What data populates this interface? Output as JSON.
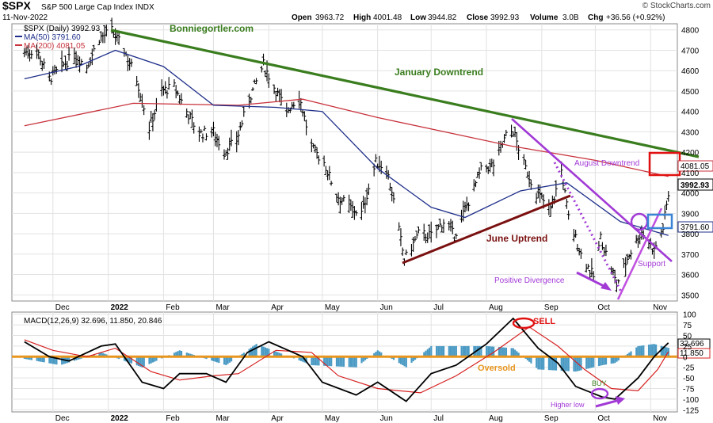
{
  "header": {
    "symbol": "$SPX",
    "name": "S&P 500 Large Cap Index INDX",
    "date": "11-Nov-2022",
    "open_label": "Open",
    "open": "3963.72",
    "high_label": "High",
    "high": "4001.48",
    "low_label": "Low",
    "low": "3944.82",
    "close_label": "Close",
    "close": "3992.93",
    "volume_label": "Volume",
    "volume": "3.0B",
    "chg_label": "Chg",
    "chg": "+36.56 (+0.92%)",
    "watermark": "© StockCharts.com"
  },
  "legend": {
    "price": "$SPX (Daily) 3992.93",
    "ma50": "MA(50) 3791.60",
    "ma200": "MA(200) 4081.05",
    "macd": "MACD(12,26,9) 32.696, 11.850, 20.846"
  },
  "colors": {
    "ma50": "#1f2f8a",
    "ma200": "#c8323c",
    "green_trend": "#3a7d1e",
    "june_trend": "#7a1010",
    "purple": "#a23ad6",
    "macd_fast": "#000000",
    "macd_signal": "#d62020",
    "hist": "#4a9ac4",
    "oversold": "#e8961e",
    "red_box": "#e01010",
    "blue_box": "#3a84d6"
  },
  "annotations": {
    "site": "Bonniegortler.com",
    "january": "January Downtrend",
    "august": "August Downtrend",
    "june": "June Uptrend",
    "support": "Support",
    "divergence": "Positive Divergence",
    "sell": "SELL",
    "buy": "BUY",
    "oversold": "Oversold",
    "higher_low": "Higher low"
  },
  "price_labels": {
    "ma200": "4081.05",
    "close": "3992.93",
    "ma50": "3791.60"
  },
  "macd_labels": {
    "macd": "32.696",
    "signal": "11.850"
  },
  "chart_data": [
    {
      "type": "ohlc",
      "title": "$SPX (Daily)",
      "yticks": [
        3500,
        3600,
        3700,
        3800,
        3900,
        4000,
        4100,
        4200,
        4300,
        4400,
        4500,
        4600,
        4700,
        4800
      ],
      "ylim": [
        3470,
        4830
      ],
      "months": [
        "Dec",
        "2022",
        "Feb",
        "Mar",
        "Apr",
        "May",
        "Jun",
        "Jul",
        "Aug",
        "Sep",
        "Oct",
        "Nov"
      ],
      "close_points": [
        [
          "2021-11-15",
          4690
        ],
        [
          "2021-11-22",
          4700
        ],
        [
          "2021-11-29",
          4560
        ],
        [
          "2021-12-06",
          4620
        ],
        [
          "2021-12-13",
          4680
        ],
        [
          "2021-12-20",
          4620
        ],
        [
          "2021-12-27",
          4760
        ],
        [
          "2022-01-03",
          4795
        ],
        [
          "2022-01-10",
          4700
        ],
        [
          "2022-01-17",
          4560
        ],
        [
          "2022-01-24",
          4320
        ],
        [
          "2022-01-31",
          4500
        ],
        [
          "2022-02-07",
          4520
        ],
        [
          "2022-02-14",
          4400
        ],
        [
          "2022-02-21",
          4290
        ],
        [
          "2022-03-01",
          4300
        ],
        [
          "2022-03-07",
          4200
        ],
        [
          "2022-03-14",
          4260
        ],
        [
          "2022-03-21",
          4460
        ],
        [
          "2022-03-29",
          4630
        ],
        [
          "2022-04-04",
          4520
        ],
        [
          "2022-04-11",
          4400
        ],
        [
          "2022-04-18",
          4480
        ],
        [
          "2022-04-25",
          4220
        ],
        [
          "2022-05-02",
          4150
        ],
        [
          "2022-05-09",
          3990
        ],
        [
          "2022-05-16",
          3930
        ],
        [
          "2022-05-23",
          3900
        ],
        [
          "2022-05-31",
          4150
        ],
        [
          "2022-06-06",
          4120
        ],
        [
          "2022-06-10",
          3960
        ],
        [
          "2022-06-16",
          3670
        ],
        [
          "2022-06-24",
          3800
        ],
        [
          "2022-07-01",
          3790
        ],
        [
          "2022-07-08",
          3860
        ],
        [
          "2022-07-14",
          3790
        ],
        [
          "2022-07-22",
          3960
        ],
        [
          "2022-07-29",
          4110
        ],
        [
          "2022-08-05",
          4140
        ],
        [
          "2022-08-12",
          4280
        ],
        [
          "2022-08-16",
          4305
        ],
        [
          "2022-08-22",
          4140
        ],
        [
          "2022-08-29",
          4000
        ],
        [
          "2022-09-06",
          3920
        ],
        [
          "2022-09-12",
          4110
        ],
        [
          "2022-09-16",
          3880
        ],
        [
          "2022-09-23",
          3700
        ],
        [
          "2022-09-30",
          3590
        ],
        [
          "2022-10-04",
          3780
        ],
        [
          "2022-10-13",
          3550
        ],
        [
          "2022-10-20",
          3700
        ],
        [
          "2022-10-27",
          3810
        ],
        [
          "2022-11-03",
          3720
        ],
        [
          "2022-11-08",
          3830
        ],
        [
          "2022-11-11",
          3992.93
        ]
      ],
      "ma50": [
        [
          "2021-11-15",
          4560
        ],
        [
          "2021-12-15",
          4620
        ],
        [
          "2022-01-05",
          4700
        ],
        [
          "2022-02-01",
          4620
        ],
        [
          "2022-03-01",
          4430
        ],
        [
          "2022-04-05",
          4420
        ],
        [
          "2022-05-01",
          4400
        ],
        [
          "2022-06-01",
          4120
        ],
        [
          "2022-07-01",
          3930
        ],
        [
          "2022-07-20",
          3880
        ],
        [
          "2022-08-20",
          4010
        ],
        [
          "2022-09-15",
          4050
        ],
        [
          "2022-10-15",
          3860
        ],
        [
          "2022-11-11",
          3791.6
        ]
      ],
      "ma200": [
        [
          "2021-11-15",
          4330
        ],
        [
          "2022-01-15",
          4440
        ],
        [
          "2022-03-15",
          4430
        ],
        [
          "2022-04-20",
          4460
        ],
        [
          "2022-06-01",
          4370
        ],
        [
          "2022-08-15",
          4230
        ],
        [
          "2022-10-01",
          4160
        ],
        [
          "2022-11-11",
          4081.05
        ]
      ]
    },
    {
      "type": "line",
      "title": "MACD(12,26,9)",
      "yticks": [
        -125,
        -100,
        -75,
        -50,
        -25,
        0,
        25,
        50,
        75,
        100
      ],
      "ylim": [
        -130,
        105
      ],
      "months": [
        "Dec",
        "2022",
        "Feb",
        "Mar",
        "Apr",
        "May",
        "Jun",
        "Jul",
        "Aug",
        "Sep",
        "Oct",
        "Nov"
      ],
      "series": [
        {
          "name": "MACD",
          "points": [
            [
              "2021-11-15",
              35
            ],
            [
              "2021-11-29",
              0
            ],
            [
              "2021-12-10",
              -10
            ],
            [
              "2021-12-28",
              25
            ],
            [
              "2022-01-05",
              30
            ],
            [
              "2022-01-20",
              -60
            ],
            [
              "2022-02-01",
              -75
            ],
            [
              "2022-02-10",
              -40
            ],
            [
              "2022-02-25",
              -40
            ],
            [
              "2022-03-08",
              -60
            ],
            [
              "2022-03-20",
              10
            ],
            [
              "2022-04-01",
              35
            ],
            [
              "2022-04-20",
              0
            ],
            [
              "2022-05-01",
              -60
            ],
            [
              "2022-05-20",
              -90
            ],
            [
              "2022-06-01",
              -60
            ],
            [
              "2022-06-17",
              -105
            ],
            [
              "2022-07-01",
              -40
            ],
            [
              "2022-07-15",
              -20
            ],
            [
              "2022-08-01",
              30
            ],
            [
              "2022-08-16",
              90
            ],
            [
              "2022-08-30",
              20
            ],
            [
              "2022-09-10",
              -15
            ],
            [
              "2022-09-20",
              -70
            ],
            [
              "2022-10-05",
              -95
            ],
            [
              "2022-10-12",
              -100
            ],
            [
              "2022-10-25",
              -50
            ],
            [
              "2022-11-03",
              0
            ],
            [
              "2022-11-11",
              32.696
            ]
          ]
        },
        {
          "name": "Signal",
          "points": [
            [
              "2021-11-15",
              40
            ],
            [
              "2021-12-01",
              15
            ],
            [
              "2021-12-20",
              0
            ],
            [
              "2022-01-05",
              20
            ],
            [
              "2022-01-25",
              -35
            ],
            [
              "2022-02-10",
              -55
            ],
            [
              "2022-03-01",
              -45
            ],
            [
              "2022-03-15",
              -40
            ],
            [
              "2022-04-05",
              15
            ],
            [
              "2022-04-25",
              10
            ],
            [
              "2022-05-10",
              -45
            ],
            [
              "2022-06-01",
              -75
            ],
            [
              "2022-06-25",
              -85
            ],
            [
              "2022-07-15",
              -45
            ],
            [
              "2022-08-05",
              10
            ],
            [
              "2022-08-25",
              70
            ],
            [
              "2022-09-10",
              25
            ],
            [
              "2022-09-25",
              -30
            ],
            [
              "2022-10-10",
              -75
            ],
            [
              "2022-10-25",
              -80
            ],
            [
              "2022-11-05",
              -30
            ],
            [
              "2022-11-11",
              11.85
            ]
          ]
        },
        {
          "name": "Histogram",
          "points": [
            [
              "2021-11-15",
              -5
            ],
            [
              "2021-12-05",
              -20
            ],
            [
              "2021-12-28",
              10
            ],
            [
              "2022-01-20",
              -25
            ],
            [
              "2022-02-10",
              15
            ],
            [
              "2022-03-08",
              -20
            ],
            [
              "2022-03-25",
              30
            ],
            [
              "2022-04-25",
              -20
            ],
            [
              "2022-05-20",
              -25
            ],
            [
              "2022-06-01",
              15
            ],
            [
              "2022-06-17",
              -25
            ],
            [
              "2022-07-01",
              25
            ],
            [
              "2022-08-01",
              25
            ],
            [
              "2022-08-16",
              20
            ],
            [
              "2022-08-30",
              -30
            ],
            [
              "2022-09-20",
              -35
            ],
            [
              "2022-10-05",
              -20
            ],
            [
              "2022-10-12",
              -15
            ],
            [
              "2022-10-25",
              25
            ],
            [
              "2022-11-03",
              30
            ],
            [
              "2022-11-11",
              20.846
            ]
          ]
        }
      ]
    }
  ]
}
